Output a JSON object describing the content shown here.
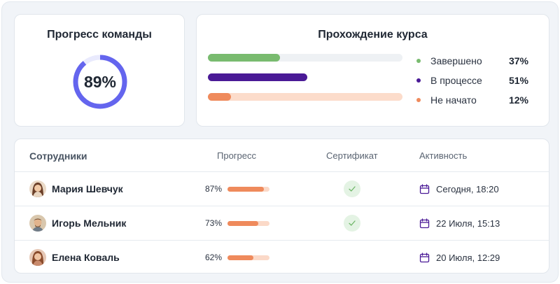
{
  "team_progress": {
    "title": "Прогресс команды",
    "value_label": "89%",
    "value": 0.89,
    "ring_color": "#6465ee",
    "ring_track_color": "#e9eafd"
  },
  "course_progress": {
    "title": "Прохождение курса",
    "items": [
      {
        "label": "Завершено",
        "value_label": "37%",
        "fraction": 0.37,
        "color": "#79bb6f",
        "track_color": "#eef1f4",
        "dot_color": "#79bb6f"
      },
      {
        "label": "В процессе",
        "value_label": "51%",
        "fraction": 0.51,
        "color": "#4a1a96",
        "track_color": "#ffffff",
        "dot_color": "#4a1a96"
      },
      {
        "label": "Не начато",
        "value_label": "12%",
        "fraction": 0.12,
        "color": "#ef8a5c",
        "track_color": "#fcdccb",
        "dot_color": "#ef8a5c"
      }
    ]
  },
  "table": {
    "headers": {
      "employees": "Сотрудники",
      "progress": "Прогресс",
      "certificate": "Сертификат",
      "activity": "Активность"
    },
    "rows": [
      {
        "name": "Мария Шевчук",
        "progress_label": "87%",
        "progress": 0.87,
        "certificate": true,
        "activity": "Сегодня, 18:20",
        "avatar": "woman-avatar"
      },
      {
        "name": "Игорь Мельник",
        "progress_label": "73%",
        "progress": 0.73,
        "certificate": true,
        "activity": "22 Июля, 15:13",
        "avatar": "man-avatar"
      },
      {
        "name": "Елена Коваль",
        "progress_label": "62%",
        "progress": 0.62,
        "certificate": false,
        "activity": "20 Июля, 12:29",
        "avatar": "woman-avatar"
      }
    ]
  }
}
